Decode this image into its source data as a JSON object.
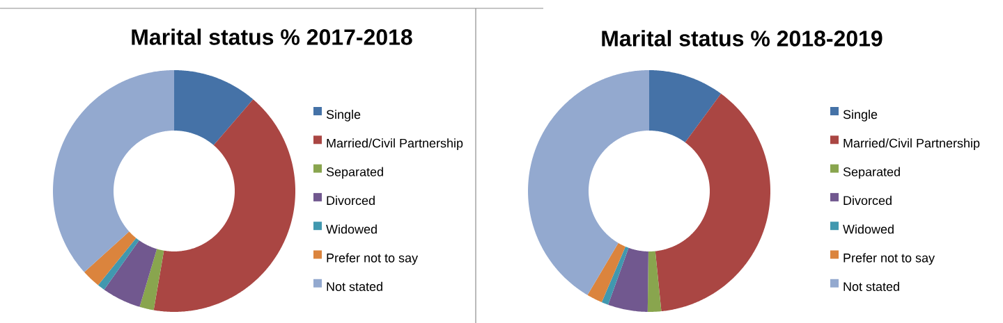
{
  "chart_data": [
    {
      "type": "donut",
      "title": "Marital status % 2017-2018",
      "categories": [
        "Single",
        "Married/Civil Partnership",
        "Separated",
        "Divorced",
        "Widowed",
        "Prefer not to say",
        "Not stated"
      ],
      "values": [
        11.3,
        41.4,
        1.9,
        5.2,
        1.0,
        2.5,
        36.7
      ],
      "colors": [
        "#4572a7",
        "#aa4643",
        "#89a54e",
        "#71588f",
        "#4198af",
        "#db843d",
        "#93a9cf"
      ],
      "legend": "right"
    },
    {
      "type": "donut",
      "title": "Marital status % 2018-2019",
      "categories": [
        "Single",
        "Married/Civil Partnership",
        "Separated",
        "Divorced",
        "Widowed",
        "Prefer not to say",
        "Not stated"
      ],
      "values": [
        10.1,
        38.3,
        1.8,
        5.3,
        0.9,
        2.1,
        41.5
      ],
      "colors": [
        "#4572a7",
        "#aa4643",
        "#89a54e",
        "#71588f",
        "#4198af",
        "#db843d",
        "#93a9cf"
      ],
      "legend": "right"
    }
  ]
}
